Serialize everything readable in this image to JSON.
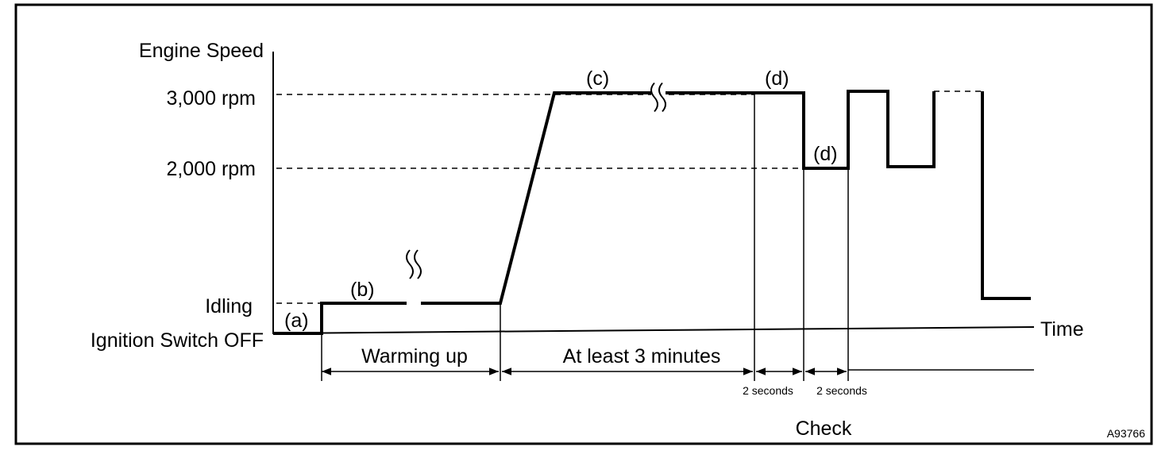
{
  "axis": {
    "y_title": "Engine Speed",
    "levels": [
      "3,000 rpm",
      "2,000 rpm",
      "Idling",
      "Ignition Switch OFF"
    ],
    "x_title": "Time"
  },
  "phases": {
    "labels": [
      "(a)",
      "(b)",
      "(c)",
      "(d)",
      "(d)"
    ]
  },
  "durations": [
    "Warming up",
    "At least 3 minutes",
    "2 seconds",
    "2 seconds"
  ],
  "footer": {
    "check": "Check",
    "code": "A93766"
  }
}
